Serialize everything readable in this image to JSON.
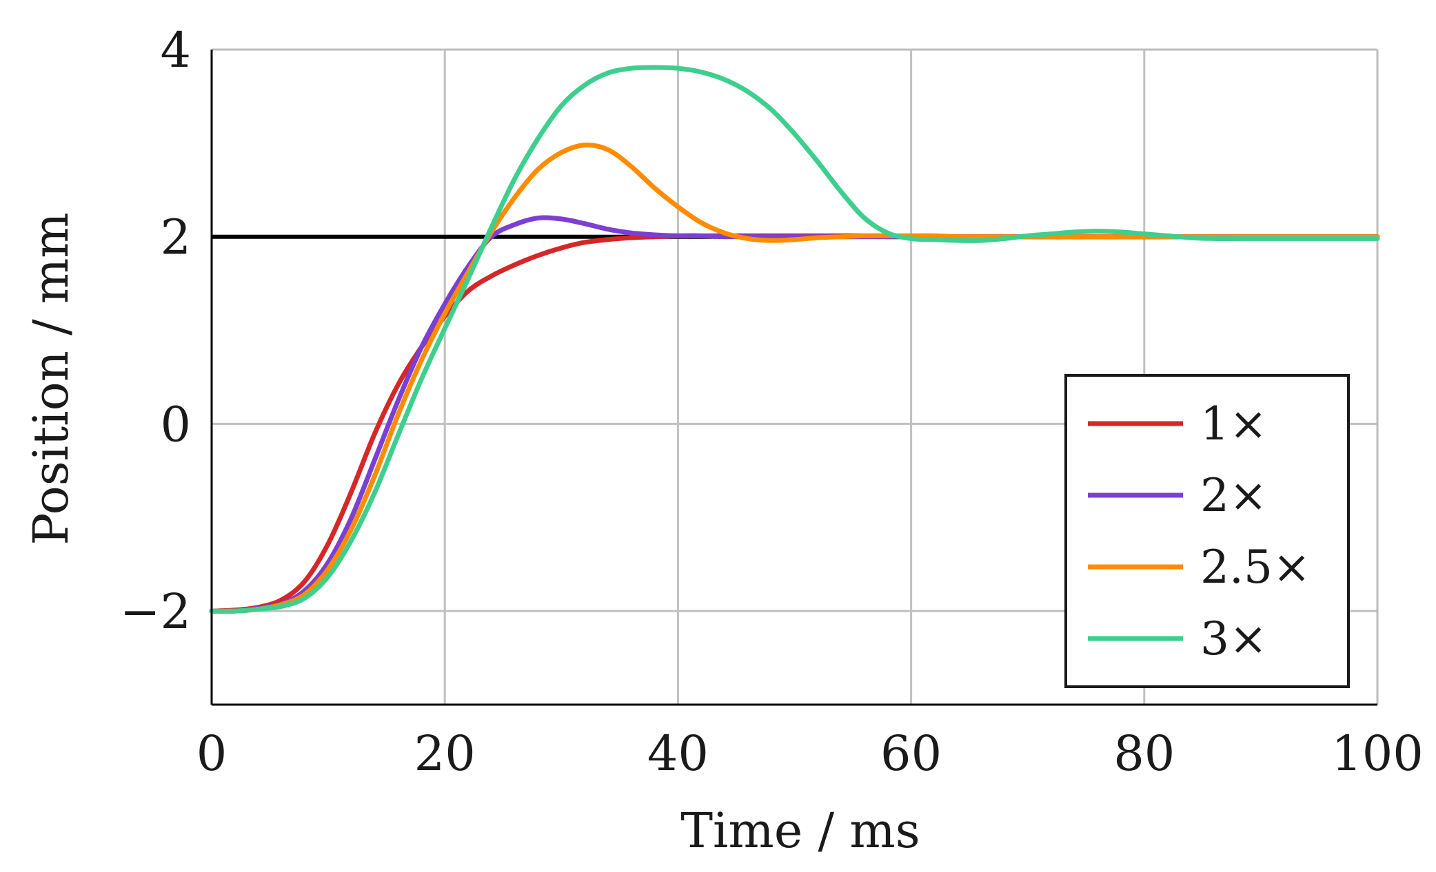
{
  "chart_data": {
    "type": "line",
    "title": "",
    "xlabel": "Time / ms",
    "ylabel": "Position / mm",
    "xlim": [
      0,
      100
    ],
    "ylim": [
      -3,
      4
    ],
    "xticks": [
      0,
      20,
      40,
      60,
      80,
      100
    ],
    "yticks": [
      -2,
      0,
      2,
      4
    ],
    "xtick_labels": [
      "0",
      "20",
      "40",
      "60",
      "80",
      "100"
    ],
    "ytick_labels": [
      "−2",
      "0",
      "2",
      "4"
    ],
    "grid": true,
    "legend_position": "bottom-right",
    "reference_line": {
      "y": 2,
      "color": "#000000"
    },
    "x": [
      0,
      2,
      4,
      6,
      8,
      10,
      12,
      14,
      16,
      18,
      20,
      22,
      24,
      26,
      28,
      30,
      32,
      34,
      36,
      38,
      40,
      42,
      44,
      46,
      48,
      50,
      52,
      54,
      56,
      58,
      60,
      62,
      64,
      66,
      68,
      70,
      72,
      74,
      76,
      78,
      80,
      82,
      84,
      86,
      88,
      90,
      92,
      94,
      96,
      98,
      100
    ],
    "series": [
      {
        "name": "1×",
        "color": "#d62728",
        "values": [
          -2.0,
          -1.99,
          -1.96,
          -1.88,
          -1.68,
          -1.28,
          -0.72,
          -0.1,
          0.42,
          0.82,
          1.15,
          1.42,
          1.58,
          1.7,
          1.8,
          1.88,
          1.94,
          1.97,
          1.99,
          2.0,
          2.01,
          2.01,
          2.01,
          2.01,
          2.01,
          2.01,
          2.01,
          2.01,
          2.01,
          2.0,
          2.0,
          2.0,
          2.0,
          2.0,
          2.0,
          2.0,
          2.0,
          2.0,
          2.0,
          2.0,
          2.0,
          2.0,
          2.0,
          2.0,
          2.0,
          2.0,
          2.0,
          2.0,
          2.0,
          2.0,
          2.0
        ]
      },
      {
        "name": "2×",
        "color": "#7b3fd4",
        "values": [
          -2.0,
          -2.0,
          -1.97,
          -1.92,
          -1.78,
          -1.48,
          -1.0,
          -0.38,
          0.25,
          0.82,
          1.28,
          1.68,
          2.0,
          2.13,
          2.2,
          2.19,
          2.14,
          2.08,
          2.04,
          2.02,
          2.01,
          2.01,
          2.0,
          2.0,
          2.0,
          2.0,
          2.0,
          2.0,
          2.0,
          2.0,
          2.0,
          2.0,
          2.0,
          2.0,
          2.0,
          2.0,
          2.0,
          2.0,
          2.0,
          2.0,
          2.0,
          2.0,
          2.0,
          2.0,
          2.0,
          2.0,
          2.0,
          2.0,
          2.0,
          2.0,
          2.0
        ]
      },
      {
        "name": "2.5×",
        "color": "#ff8c00",
        "values": [
          -2.0,
          -2.0,
          -1.98,
          -1.93,
          -1.82,
          -1.55,
          -1.12,
          -0.55,
          0.1,
          0.68,
          1.18,
          1.62,
          2.05,
          2.42,
          2.72,
          2.9,
          2.98,
          2.93,
          2.75,
          2.52,
          2.32,
          2.15,
          2.04,
          1.98,
          1.96,
          1.97,
          1.99,
          2.0,
          2.01,
          2.01,
          2.01,
          2.01,
          2.0,
          2.0,
          2.0,
          2.0,
          2.0,
          2.0,
          2.0,
          2.0,
          2.0,
          2.0,
          2.0,
          2.0,
          2.0,
          2.0,
          2.0,
          2.0,
          2.0,
          2.0,
          2.0
        ]
      },
      {
        "name": "3×",
        "color": "#3ecf8e",
        "values": [
          -2.0,
          -2.0,
          -1.98,
          -1.95,
          -1.86,
          -1.63,
          -1.24,
          -0.73,
          -0.12,
          0.48,
          1.02,
          1.55,
          2.1,
          2.62,
          3.05,
          3.4,
          3.62,
          3.75,
          3.8,
          3.81,
          3.8,
          3.76,
          3.68,
          3.55,
          3.36,
          3.1,
          2.8,
          2.48,
          2.2,
          2.04,
          1.98,
          1.97,
          1.96,
          1.96,
          1.98,
          2.01,
          2.03,
          2.05,
          2.06,
          2.05,
          2.03,
          2.01,
          1.99,
          1.98,
          1.98,
          1.98,
          1.98,
          1.98,
          1.98,
          1.98,
          1.98
        ]
      }
    ]
  }
}
